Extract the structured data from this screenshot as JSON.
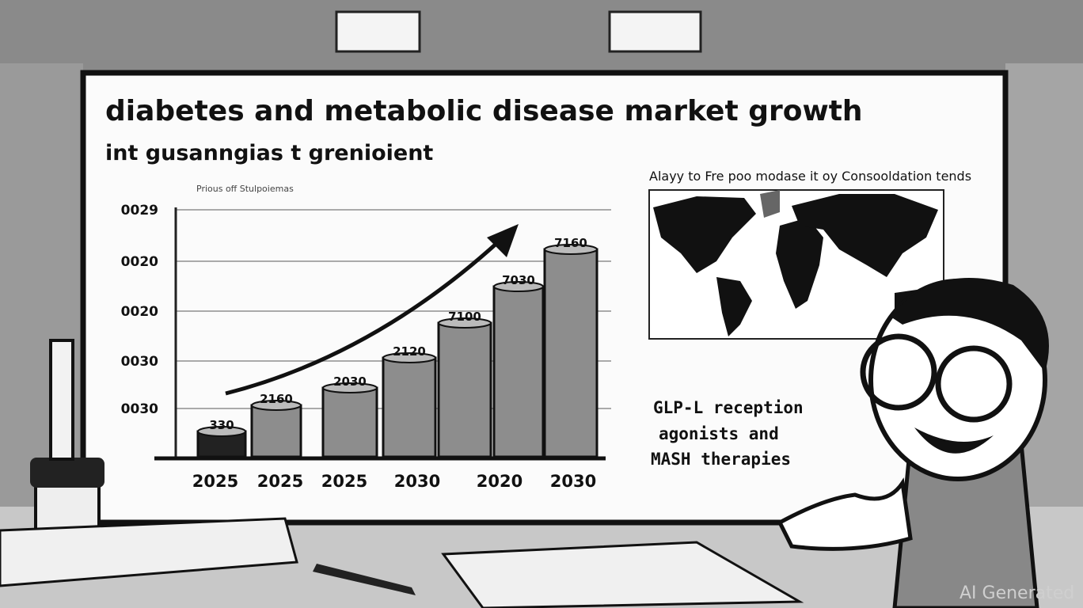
{
  "board": {
    "title": "diabetes and metabolic disease market growth",
    "subtitle": "int gusanngias t grenioient"
  },
  "chart": {
    "caption": "Prious off Stulpoiemas",
    "y_labels": [
      "0029",
      "0020",
      "0020",
      "0030",
      "0030"
    ],
    "bar_labels": [
      "330",
      "2160",
      "2030",
      "2120",
      "7100",
      "7030",
      "7160"
    ],
    "x_labels": [
      "2025",
      "2025",
      "2025",
      "2030",
      "2020",
      "2030"
    ]
  },
  "map": {
    "caption": "Alayy to Fre poo modase it oy Consooldation tends"
  },
  "note": {
    "lines": [
      "GLP-L reception",
      "agonists and",
      "MASH therapies"
    ]
  },
  "watermark": "AI Generated"
}
